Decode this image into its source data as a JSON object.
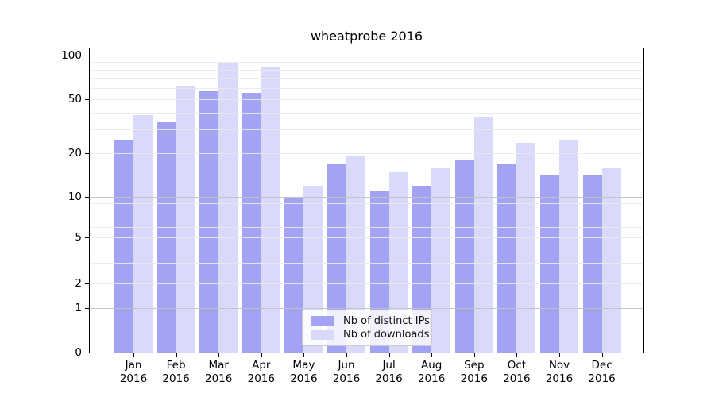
{
  "chart_data": {
    "type": "bar",
    "title": "wheatprobe 2016",
    "scale": "symlog",
    "grid": "horizontal, major at decades, minor at 2-9 steps, drawn above bars",
    "legend_position": "lower-center",
    "categories": [
      "Jan",
      "Feb",
      "Mar",
      "Apr",
      "May",
      "Jun",
      "Jul",
      "Aug",
      "Sep",
      "Oct",
      "Nov",
      "Dec"
    ],
    "x_year": "2016",
    "series": [
      {
        "name": "Nb of distinct IPs",
        "color": "#a3a3f5",
        "values": [
          25,
          34,
          57,
          55,
          10,
          17,
          11,
          12,
          18,
          17,
          14,
          14
        ]
      },
      {
        "name": "Nb of downloads",
        "color": "#d9d9fa",
        "values": [
          38,
          62,
          89,
          84,
          12,
          19,
          15,
          16,
          37,
          24,
          25,
          16
        ]
      }
    ],
    "y_ticks": [
      0,
      1,
      2,
      5,
      10,
      20,
      50,
      100
    ],
    "grid_major_values": [
      1,
      10,
      100
    ],
    "grid_minor_values": [
      2,
      3,
      4,
      5,
      6,
      7,
      8,
      9,
      20,
      30,
      40,
      50,
      60,
      70,
      80,
      90
    ],
    "ylim": [
      0,
      110
    ],
    "xlabel": "",
    "ylabel": ""
  },
  "colors": {
    "series_ips": "#a3a3f5",
    "series_downloads": "#d9d9fa",
    "grid_major": "#c2c2c2",
    "grid_minor": "#eaeaea",
    "axis": "#000000",
    "legend_border": "#cccccc"
  }
}
